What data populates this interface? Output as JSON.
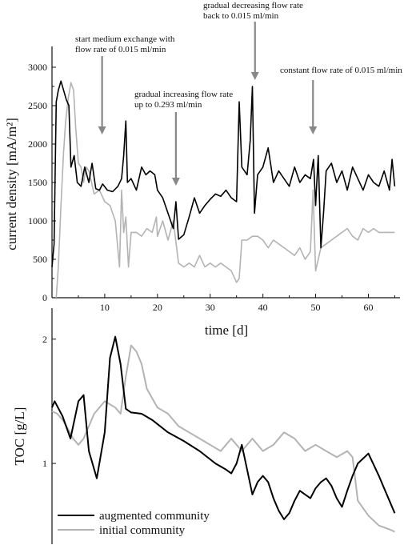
{
  "chart_data": [
    {
      "type": "line",
      "xlabel": "time [d]",
      "ylabel": "current density [mA/m²]",
      "xlim": [
        0,
        66
      ],
      "ylim": [
        0,
        3250
      ],
      "x_ticks": [
        10,
        20,
        30,
        40,
        50,
        60
      ],
      "y_ticks": [
        0,
        500,
        1000,
        1500,
        2000,
        2500,
        3000
      ],
      "series": [
        {
          "name": "augmented community",
          "color": "#000000",
          "x": [
            0,
            0.4,
            0.8,
            1.2,
            1.7,
            2.2,
            2.7,
            3.2,
            3.6,
            4.2,
            4.8,
            5.5,
            6.2,
            7.0,
            7.6,
            8.3,
            9.0,
            9.6,
            10.5,
            11.5,
            12.5,
            13.2,
            13.6,
            14.0,
            14.3,
            15.0,
            16.0,
            17.0,
            17.8,
            18.6,
            19.5,
            20.0,
            21.0,
            22.0,
            23.0,
            23.5,
            24.0,
            25.0,
            26.0,
            27.0,
            28.0,
            29.0,
            30.0,
            31.0,
            32.0,
            33.0,
            34.0,
            35.0,
            35.5,
            36.0,
            37.0,
            37.6,
            38.0,
            38.4,
            39.0,
            40.0,
            41.0,
            42.0,
            43.0,
            44.0,
            45.0,
            46.0,
            47.0,
            48.0,
            49.0,
            49.6,
            50.0,
            50.5,
            51.0,
            51.5,
            52.0,
            53.0,
            54.0,
            55.0,
            56.0,
            57.0,
            58.0,
            59.0,
            60.0,
            61.0,
            62.0,
            63.0,
            64.0,
            64.5,
            65.0
          ],
          "values": [
            400,
            700,
            2550,
            2700,
            2820,
            2700,
            2580,
            2500,
            1700,
            1850,
            1500,
            1450,
            1700,
            1500,
            1750,
            1420,
            1400,
            1480,
            1400,
            1380,
            1450,
            1550,
            1850,
            2300,
            1500,
            1550,
            1400,
            1700,
            1600,
            1650,
            1600,
            1400,
            1300,
            1100,
            900,
            1250,
            760,
            820,
            1050,
            1300,
            1100,
            1200,
            1280,
            1350,
            1320,
            1400,
            1300,
            1250,
            2550,
            1700,
            1600,
            2050,
            2750,
            1100,
            1600,
            1700,
            1950,
            1500,
            1650,
            1550,
            1450,
            1700,
            1500,
            1600,
            1550,
            1800,
            1200,
            1850,
            650,
            1100,
            1650,
            1750,
            1500,
            1650,
            1400,
            1700,
            1550,
            1400,
            1600,
            1500,
            1450,
            1650,
            1400,
            1800,
            1450
          ]
        },
        {
          "name": "initial community",
          "color": "#b3b3b3",
          "x": [
            0.8,
            1.2,
            1.7,
            2.2,
            2.6,
            3.1,
            3.6,
            4.1,
            4.5,
            5.0,
            5.5,
            6.0,
            6.5,
            7.0,
            8.0,
            9.0,
            10.0,
            11.0,
            12.0,
            12.8,
            13.2,
            13.6,
            14.0,
            14.5,
            15.0,
            16.0,
            17.0,
            18.0,
            19.0,
            19.8,
            20.0,
            21.0,
            22.0,
            23.0,
            24.0,
            25.0,
            26.0,
            27.0,
            28.0,
            29.0,
            30.0,
            31.0,
            32.0,
            33.0,
            34.0,
            35.0,
            35.5,
            36.0,
            37.0,
            38.0,
            39.0,
            40.0,
            41.0,
            42.0,
            43.0,
            44.0,
            45.0,
            46.0,
            47.0,
            48.0,
            49.0,
            49.5,
            50.0,
            51.0,
            52.0,
            53.0,
            54.0,
            55.0,
            56.0,
            57.0,
            58.0,
            59.0,
            60.0,
            61.0,
            62.0,
            63.0,
            64.0,
            65.0
          ],
          "values": [
            0,
            400,
            1200,
            1900,
            2300,
            2600,
            2800,
            2700,
            2200,
            1750,
            1700,
            1500,
            1700,
            1650,
            1350,
            1400,
            1250,
            1200,
            1000,
            400,
            1400,
            850,
            1050,
            400,
            850,
            850,
            800,
            900,
            850,
            1050,
            800,
            1000,
            750,
            1000,
            450,
            400,
            450,
            400,
            550,
            400,
            450,
            400,
            450,
            400,
            350,
            200,
            250,
            750,
            750,
            800,
            800,
            750,
            650,
            750,
            700,
            650,
            600,
            550,
            650,
            500,
            600,
            1400,
            350,
            650,
            700,
            750,
            800,
            850,
            900,
            800,
            750,
            900,
            850,
            900,
            850,
            850,
            850,
            850
          ]
        }
      ],
      "annotations": [
        {
          "lines": [
            "start medium exchange with",
            "flow rate of 0.015 ml/min"
          ],
          "x": 9.5
        },
        {
          "lines": [
            "gradual increasing flow rate",
            "up to 0.293 ml/min"
          ],
          "x": 23.5
        },
        {
          "lines": [
            "gradual decreasing flow rate",
            "back to 0.015 ml/min"
          ],
          "x": 38.5
        },
        {
          "lines": [
            "constant flow rate of 0.015 ml/min"
          ],
          "x": 49.5
        }
      ]
    },
    {
      "type": "line",
      "xlabel": "",
      "ylabel": "TOC [g/L]",
      "xlim": [
        0,
        66
      ],
      "ylim": [
        0.35,
        2.25
      ],
      "y_ticks": [
        1,
        2
      ],
      "series": [
        {
          "name": "augmented community",
          "color": "#000000",
          "x": [
            0,
            0.5,
            2,
            3.5,
            5,
            6,
            7,
            8.5,
            10,
            11,
            12,
            13,
            14,
            15,
            17,
            19,
            22,
            25,
            28,
            31,
            33,
            34,
            35,
            36,
            37,
            38,
            39,
            40,
            41,
            42,
            43,
            44,
            45,
            46,
            47,
            48,
            49,
            50,
            51,
            52,
            53,
            54,
            55,
            56,
            57,
            58,
            60,
            62,
            64,
            65
          ],
          "values": [
            1.45,
            1.5,
            1.38,
            1.2,
            1.5,
            1.55,
            1.1,
            0.88,
            1.25,
            1.85,
            2.02,
            1.8,
            1.44,
            1.41,
            1.4,
            1.35,
            1.25,
            1.18,
            1.1,
            1.0,
            0.95,
            0.92,
            1.0,
            1.15,
            0.95,
            0.75,
            0.85,
            0.9,
            0.85,
            0.72,
            0.62,
            0.55,
            0.6,
            0.7,
            0.78,
            0.75,
            0.72,
            0.8,
            0.85,
            0.88,
            0.82,
            0.72,
            0.65,
            0.78,
            0.9,
            1.0,
            1.08,
            0.9,
            0.7,
            0.6
          ]
        },
        {
          "name": "initial community",
          "color": "#b3b3b3",
          "x": [
            0,
            1,
            2,
            3,
            4,
            5,
            6,
            7,
            8,
            10,
            12,
            13,
            14,
            15,
            16,
            17,
            18,
            20,
            22,
            24,
            26,
            28,
            30,
            32,
            34,
            36,
            38,
            40,
            42,
            44,
            46,
            48,
            50,
            52,
            54,
            56,
            57,
            58,
            60,
            62,
            64,
            65
          ],
          "values": [
            1.42,
            1.4,
            1.35,
            1.28,
            1.2,
            1.15,
            1.2,
            1.3,
            1.4,
            1.5,
            1.45,
            1.4,
            1.7,
            1.95,
            1.9,
            1.8,
            1.6,
            1.45,
            1.4,
            1.3,
            1.25,
            1.2,
            1.15,
            1.1,
            1.2,
            1.1,
            1.2,
            1.1,
            1.15,
            1.25,
            1.2,
            1.1,
            1.15,
            1.1,
            1.05,
            1.1,
            1.05,
            0.7,
            0.58,
            0.5,
            0.47,
            0.45
          ]
        }
      ],
      "legend": {
        "placement": "bottom-left",
        "entries": [
          "augmented community",
          "initial community"
        ]
      }
    }
  ]
}
